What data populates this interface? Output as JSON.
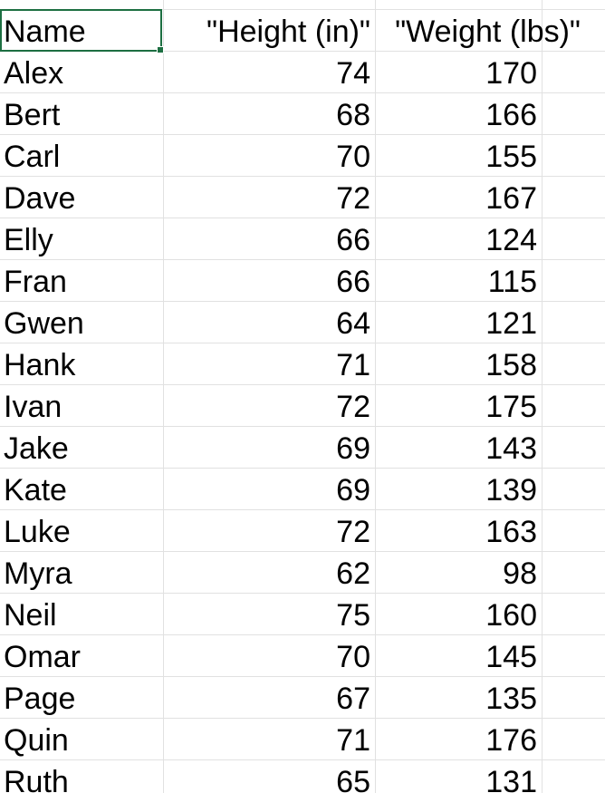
{
  "sheet": {
    "headers": {
      "name": "Name",
      "height": "\"Height (in)\"",
      "weight": "\"Weight (lbs)\""
    },
    "rows": [
      {
        "name": "Alex",
        "height": "74",
        "weight": "170"
      },
      {
        "name": "Bert",
        "height": "68",
        "weight": "166"
      },
      {
        "name": "Carl",
        "height": "70",
        "weight": "155"
      },
      {
        "name": "Dave",
        "height": "72",
        "weight": "167"
      },
      {
        "name": "Elly",
        "height": "66",
        "weight": "124"
      },
      {
        "name": "Fran",
        "height": "66",
        "weight": "115"
      },
      {
        "name": "Gwen",
        "height": "64",
        "weight": "121"
      },
      {
        "name": "Hank",
        "height": "71",
        "weight": "158"
      },
      {
        "name": "Ivan",
        "height": "72",
        "weight": "175"
      },
      {
        "name": "Jake",
        "height": "69",
        "weight": "143"
      },
      {
        "name": "Kate",
        "height": "69",
        "weight": "139"
      },
      {
        "name": "Luke",
        "height": "72",
        "weight": "163"
      },
      {
        "name": "Myra",
        "height": "62",
        "weight": "98"
      },
      {
        "name": "Neil",
        "height": "75",
        "weight": "160"
      },
      {
        "name": "Omar",
        "height": "70",
        "weight": "145"
      },
      {
        "name": "Page",
        "height": "67",
        "weight": "135"
      },
      {
        "name": "Quin",
        "height": "71",
        "weight": "176"
      },
      {
        "name": "Ruth",
        "height": "65",
        "weight": "131"
      }
    ]
  },
  "colors": {
    "selection_border": "#1d6f42",
    "gridline": "#e1e1e1"
  }
}
